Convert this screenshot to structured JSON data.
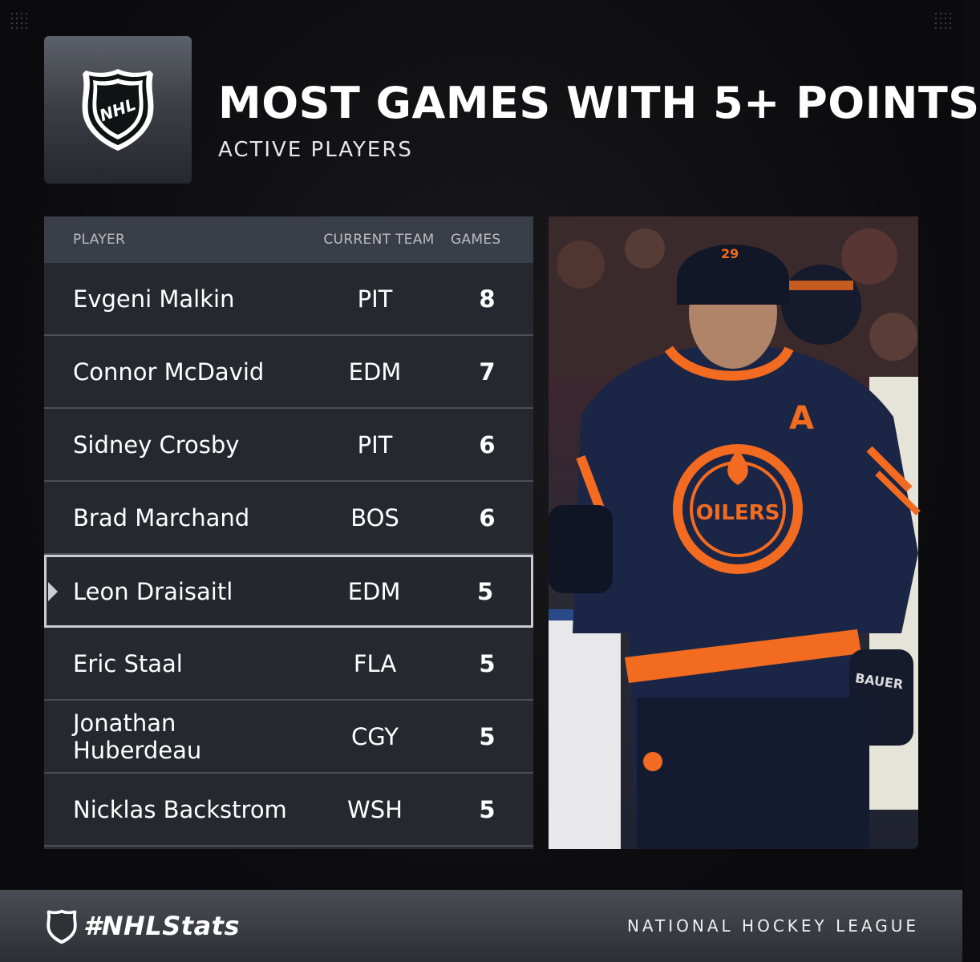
{
  "header": {
    "title": "MOST GAMES WITH 5+ POINTS",
    "subtitle": "ACTIVE PLAYERS"
  },
  "logo": {
    "icon": "nhl-shield-icon",
    "text": "NHL"
  },
  "table": {
    "columns": {
      "player": "PLAYER",
      "team": "CURRENT TEAM",
      "games": "GAMES"
    },
    "rows": [
      {
        "player": "Evgeni Malkin",
        "team": "PIT",
        "games": "8"
      },
      {
        "player": "Connor McDavid",
        "team": "EDM",
        "games": "7"
      },
      {
        "player": "Sidney Crosby",
        "team": "PIT",
        "games": "6"
      },
      {
        "player": "Brad Marchand",
        "team": "BOS",
        "games": "6"
      },
      {
        "player": "Leon Draisaitl",
        "team": "EDM",
        "games": "5"
      },
      {
        "player": "Eric Staal",
        "team": "FLA",
        "games": "5"
      },
      {
        "player": "Jonathan Huberdeau",
        "team": "CGY",
        "games": "5"
      },
      {
        "player": "Nicklas Backstrom",
        "team": "WSH",
        "games": "5"
      }
    ],
    "highlighted_row": 4
  },
  "photo": {
    "jersey_number": "29",
    "jersey_letter": "A",
    "crest_text": "OILERS",
    "glove_text": "BAUER"
  },
  "footer": {
    "hashtag": "#NHLStats",
    "league": "NATIONAL HOCKEY LEAGUE"
  },
  "colors": {
    "background": "#0d0d0f",
    "table_row": "#25282e",
    "table_header": "#3a3e46",
    "oilers_navy": "#1b2545",
    "oilers_orange": "#f26b21"
  }
}
